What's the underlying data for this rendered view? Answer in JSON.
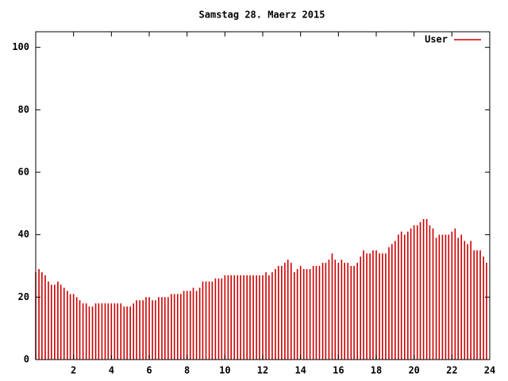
{
  "chart_data": {
    "type": "impulse",
    "title": "Samstag 28. Maerz 2015",
    "series": [
      {
        "name": "User",
        "color": "#cc0000",
        "x": [
          0,
          0.17,
          0.33,
          0.5,
          0.67,
          0.83,
          1,
          1.17,
          1.33,
          1.5,
          1.67,
          1.83,
          2,
          2.17,
          2.33,
          2.5,
          2.67,
          2.83,
          3,
          3.17,
          3.33,
          3.5,
          3.67,
          3.83,
          4,
          4.17,
          4.33,
          4.5,
          4.67,
          4.83,
          5,
          5.17,
          5.33,
          5.5,
          5.67,
          5.83,
          6,
          6.17,
          6.33,
          6.5,
          6.67,
          6.83,
          7,
          7.17,
          7.33,
          7.5,
          7.67,
          7.83,
          8,
          8.17,
          8.33,
          8.5,
          8.67,
          8.83,
          9,
          9.17,
          9.33,
          9.5,
          9.67,
          9.83,
          10,
          10.17,
          10.33,
          10.5,
          10.67,
          10.83,
          11,
          11.17,
          11.33,
          11.5,
          11.67,
          11.83,
          12,
          12.17,
          12.33,
          12.5,
          12.67,
          12.83,
          13,
          13.17,
          13.33,
          13.5,
          13.67,
          13.83,
          14,
          14.17,
          14.33,
          14.5,
          14.67,
          14.83,
          15,
          15.17,
          15.33,
          15.5,
          15.67,
          15.83,
          16,
          16.17,
          16.33,
          16.5,
          16.67,
          16.83,
          17,
          17.17,
          17.33,
          17.5,
          17.67,
          17.83,
          18,
          18.17,
          18.33,
          18.5,
          18.67,
          18.83,
          19,
          19.17,
          19.33,
          19.5,
          19.67,
          19.83,
          20,
          20.17,
          20.33,
          20.5,
          20.67,
          20.83,
          21,
          21.17,
          21.33,
          21.5,
          21.67,
          21.83,
          22,
          22.17,
          22.33,
          22.5,
          22.67,
          22.83,
          23,
          23.17,
          23.33,
          23.5,
          23.67,
          23.83
        ],
        "values": [
          28,
          29,
          28,
          27,
          25,
          24,
          24,
          25,
          24,
          23,
          22,
          21,
          21,
          20,
          19,
          18,
          18,
          17,
          17,
          18,
          18,
          18,
          18,
          18,
          18,
          18,
          18,
          18,
          17,
          17,
          17,
          18,
          19,
          19,
          19,
          20,
          20,
          19,
          19,
          20,
          20,
          20,
          20,
          21,
          21,
          21,
          21,
          22,
          22,
          22,
          23,
          22,
          23,
          25,
          25,
          25,
          25,
          26,
          26,
          26,
          27,
          27,
          27,
          27,
          27,
          27,
          27,
          27,
          27,
          27,
          27,
          27,
          27,
          28,
          27,
          28,
          29,
          30,
          30,
          31,
          32,
          31,
          28,
          29,
          30,
          29,
          29,
          29,
          30,
          30,
          30,
          31,
          31,
          32,
          34,
          32,
          31,
          32,
          31,
          31,
          30,
          30,
          31,
          33,
          35,
          34,
          34,
          35,
          35,
          34,
          34,
          34,
          36,
          37,
          38,
          40,
          41,
          40,
          41,
          42,
          43,
          43,
          44,
          45,
          45,
          43,
          42,
          39,
          40,
          40,
          40,
          40,
          41,
          42,
          39,
          40,
          38,
          37,
          38,
          35,
          35,
          35,
          33,
          31
        ]
      }
    ],
    "xlim": [
      0,
      24
    ],
    "xticks": [
      2,
      4,
      6,
      8,
      10,
      12,
      14,
      16,
      18,
      20,
      22,
      24
    ],
    "ylim": [
      0,
      105
    ],
    "yticks": [
      0,
      20,
      40,
      60,
      80,
      100
    ]
  }
}
